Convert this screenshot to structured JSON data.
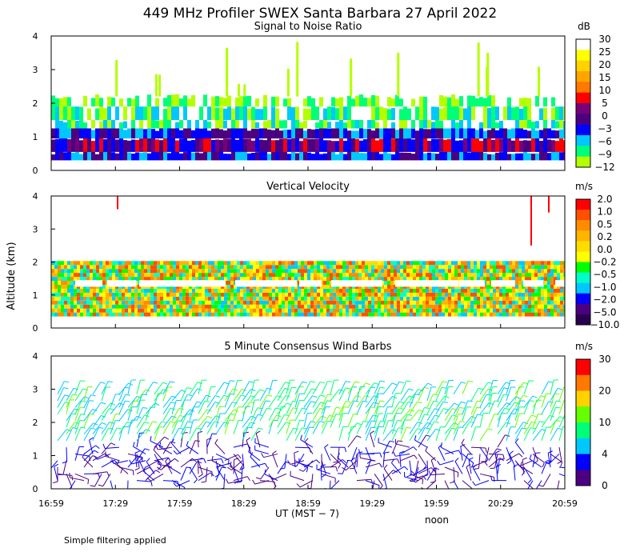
{
  "title": "449 MHz Profiler SWEX Santa Barbara 27 April 2022",
  "ylabel": "Altitude (km)",
  "xlabel": "UT  (MST − 7)",
  "xticks": [
    "16:59",
    "17:29",
    "17:59",
    "18:29",
    "18:59",
    "19:29",
    "19:59",
    "20:29",
    "20:59"
  ],
  "noon_label": "noon",
  "footnote": "Simple filtering applied",
  "colors": {
    "palette": [
      "#ffffff",
      "#ffff00",
      "#ffd200",
      "#ffa500",
      "#ff7800",
      "#ff0000",
      "#c80050",
      "#780078",
      "#4b0082",
      "#0000ff",
      "#0064ff",
      "#00c8ff",
      "#00ffc8",
      "#00ff78",
      "#64ff00",
      "#b4ff00"
    ]
  },
  "chart_data": [
    {
      "type": "heatmap",
      "title": "Signal to Noise Ratio",
      "unit": "dB",
      "ylim": [
        0,
        4
      ],
      "yticks": [
        "0",
        "1",
        "2",
        "3",
        "4"
      ],
      "xlim": [
        "16:59",
        "20:59"
      ],
      "colorbar_labels": [
        "30",
        "25",
        "20",
        "15",
        "10",
        "5",
        "0",
        "−3",
        "−6",
        "−9",
        "−12"
      ],
      "colorbar_colors": [
        "#ffffff",
        "#ffff00",
        "#ffd200",
        "#ffa500",
        "#ff7800",
        "#ff0000",
        "#780078",
        "#4b0082",
        "#0000ff",
        "#00c8ff",
        "#00ff78",
        "#b4ff00"
      ]
    },
    {
      "type": "heatmap",
      "title": "Vertical Velocity",
      "unit": "m/s",
      "ylim": [
        0,
        4
      ],
      "yticks": [
        "0",
        "1",
        "2",
        "3",
        "4"
      ],
      "xlim": [
        "16:59",
        "20:59"
      ],
      "colorbar_labels": [
        "2.0",
        "1.0",
        "0.5",
        "0.2",
        "0.0",
        "−0.2",
        "−0.5",
        "−1.0",
        "−2.0",
        "−5.0",
        "−10.0"
      ],
      "colorbar_colors": [
        "#ff0000",
        "#ff5000",
        "#ff8c00",
        "#ffb400",
        "#ffdc00",
        "#ffff00",
        "#00ff00",
        "#00ffc8",
        "#00c8ff",
        "#0000ff",
        "#4b0082",
        "#280050"
      ]
    },
    {
      "type": "scatter",
      "title": "5 Minute Consensus Wind Barbs",
      "unit": "m/s",
      "ylim": [
        0,
        4
      ],
      "yticks": [
        "0",
        "1",
        "2",
        "3",
        "4"
      ],
      "xlim": [
        "16:59",
        "20:59"
      ],
      "colorbar_labels": [
        "30",
        "20",
        "10",
        "4",
        "0"
      ],
      "colorbar_colors": [
        "#ff0000",
        "#ff7800",
        "#ffd200",
        "#64ff00",
        "#00ff78",
        "#00c8ff",
        "#0000ff",
        "#4b0082"
      ]
    }
  ]
}
